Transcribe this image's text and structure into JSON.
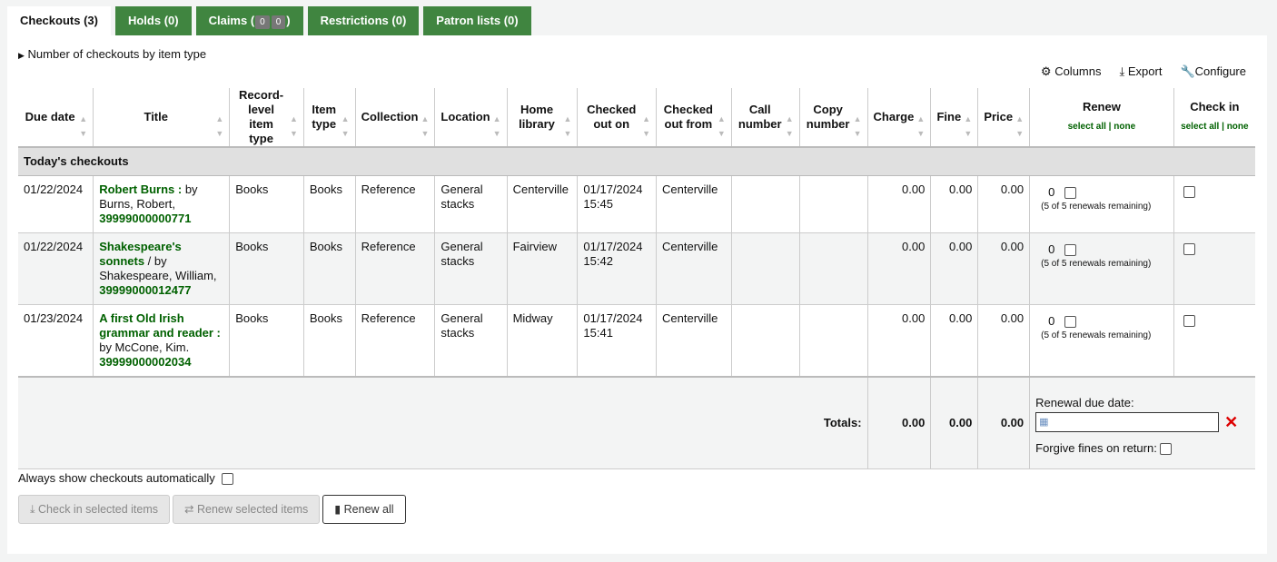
{
  "tabs": [
    {
      "label": "Checkouts (3)"
    },
    {
      "label": "Holds (0)"
    },
    {
      "label": "Claims (",
      "b1": "0",
      "b2": "0",
      "end": ")"
    },
    {
      "label": "Restrictions (0)"
    },
    {
      "label": "Patron lists (0)"
    }
  ],
  "summary": "Number of checkouts by item type",
  "toolbar": {
    "columns": "Columns",
    "export": "Export",
    "configure": "Configure"
  },
  "columns": [
    "Due date",
    "Title",
    "Record-level item type",
    "Item type",
    "Collection",
    "Location",
    "Home library",
    "Checked out on",
    "Checked out from",
    "Call number",
    "Copy number",
    "Charge",
    "Fine",
    "Price",
    "Renew",
    "Check in"
  ],
  "select_all": "select all",
  "none": "none",
  "group": "Today's checkouts",
  "rows": [
    {
      "due": "01/22/2024",
      "title": "Robert Burns :",
      "by": " by Burns, Robert,",
      "barcode": "39999000000771",
      "rtype": "Books",
      "itype": "Books",
      "coll": "Reference",
      "loc": "General stacks",
      "home": "Centerville",
      "out_on": "01/17/2024 15:45",
      "out_from": "Centerville",
      "call": "",
      "copy": "",
      "charge": "0.00",
      "fine": "0.00",
      "price": "0.00",
      "renewals": "0",
      "remaining": "(5 of 5 renewals remaining)"
    },
    {
      "due": "01/22/2024",
      "title": "Shakespeare's sonnets",
      "by": " / by Shakespeare, William,",
      "barcode": "39999000012477",
      "rtype": "Books",
      "itype": "Books",
      "coll": "Reference",
      "loc": "General stacks",
      "home": "Fairview",
      "out_on": "01/17/2024 15:42",
      "out_from": "Centerville",
      "call": "",
      "copy": "",
      "charge": "0.00",
      "fine": "0.00",
      "price": "0.00",
      "renewals": "0",
      "remaining": "(5 of 5 renewals remaining)"
    },
    {
      "due": "01/23/2024",
      "title": "A first Old Irish grammar and reader :",
      "by": " by McCone, Kim.",
      "barcode": "39999000002034",
      "rtype": "Books",
      "itype": "Books",
      "coll": "Reference",
      "loc": "General stacks",
      "home": "Midway",
      "out_on": "01/17/2024 15:41",
      "out_from": "Centerville",
      "call": "",
      "copy": "",
      "charge": "0.00",
      "fine": "0.00",
      "price": "0.00",
      "renewals": "0",
      "remaining": "(5 of 5 renewals remaining)"
    }
  ],
  "totals": {
    "label": "Totals:",
    "charge": "0.00",
    "fine": "0.00",
    "price": "0.00"
  },
  "renewal_due_label": "Renewal due date:",
  "renewal_due_value": "",
  "forgive_label": "Forgive fines on return:",
  "always_show": "Always show checkouts automatically",
  "buttons": {
    "checkin": "Check in selected items",
    "renew": "Renew selected items",
    "renew_all": "Renew all"
  }
}
